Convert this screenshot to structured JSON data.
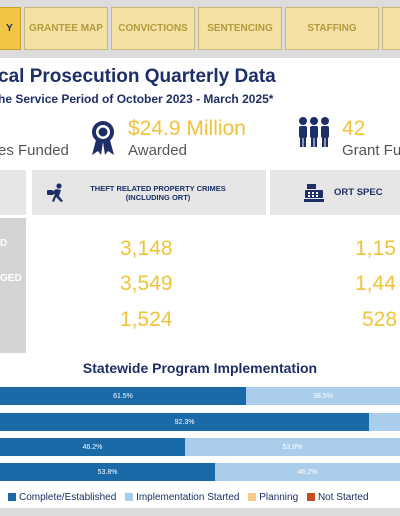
{
  "tabs": [
    {
      "label": "Y",
      "active": true
    },
    {
      "label": "GRANTEE MAP"
    },
    {
      "label": "CONVICTIONS"
    },
    {
      "label": "SENTENCING"
    },
    {
      "label": "STAFFING"
    },
    {
      "label": ""
    }
  ],
  "header": {
    "title": "cal Prosecution Quarterly Data",
    "subtitle": "he Service Period of October 2023 - March 2025*"
  },
  "stats": {
    "funded_label": "es Funded",
    "award_value": "$24.9 Million",
    "award_label": "Awarded",
    "grant_value": "42",
    "grant_label": "Grant Fu"
  },
  "cards": {
    "theft_label": "THEFT RELATED PROPERTY CRIMES\n(INCLUDING ORT)",
    "ort_label": "ORT SPEC",
    "row_labels": [
      "D",
      "GED",
      ""
    ],
    "theft_values": [
      "3,148",
      "3,549",
      "1,524"
    ],
    "ort_values": [
      "1,15",
      "1,44",
      "528"
    ]
  },
  "implementation": {
    "title": "Statewide Program Implementation",
    "bars": [
      [
        {
          "status": "complete",
          "value": 61.5,
          "label": "61.5%"
        },
        {
          "status": "started",
          "value": 38.5,
          "label": "38.5%"
        }
      ],
      [
        {
          "status": "complete",
          "value": 92.3,
          "label": "92.3%"
        },
        {
          "status": "started",
          "value": 7.7,
          "label": ""
        }
      ],
      [
        {
          "status": "complete",
          "value": 46.2,
          "label": "46.2%"
        },
        {
          "status": "started",
          "value": 53.8,
          "label": "53.8%"
        }
      ],
      [
        {
          "status": "complete",
          "value": 53.8,
          "label": "53.8%"
        },
        {
          "status": "started",
          "value": 46.2,
          "label": "46.2%"
        }
      ]
    ],
    "legend": [
      {
        "label": "Complete/Established",
        "color": "#1a6aa8"
      },
      {
        "label": "Implementation Started",
        "color": "#a9cdea"
      },
      {
        "label": "Planning",
        "color": "#f7c88a"
      },
      {
        "label": "Not Started",
        "color": "#c0501e"
      }
    ]
  },
  "colors": {
    "complete": "#1a6aa8",
    "started": "#a9cdea",
    "navy": "#1d2f66",
    "gold": "#f0c33a"
  },
  "icons": {
    "award": "ribbon-award-icon",
    "grant": "people-group-icon",
    "theft": "running-thief-icon",
    "ort": "cash-register-icon"
  }
}
